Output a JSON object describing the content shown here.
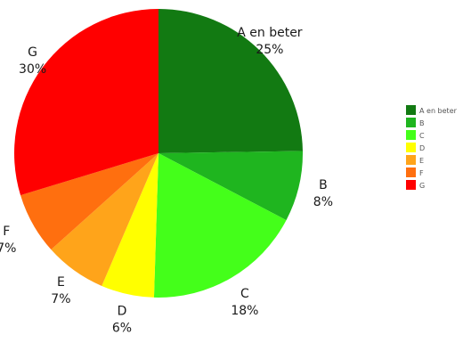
{
  "chart_data": {
    "type": "pie",
    "title": "",
    "categories": [
      "A en beter",
      "B",
      "C",
      "D",
      "E",
      "F",
      "G"
    ],
    "values": [
      25,
      8,
      18,
      6,
      7,
      7,
      30
    ],
    "labels": [
      "25%",
      "8%",
      "18%",
      "6%",
      "7%",
      "7%",
      "30%"
    ],
    "colors": [
      "#127a12",
      "#1fb51f",
      "#44ff1a",
      "#ffff00",
      "#ffa41a",
      "#ff6f0f",
      "#ff0000"
    ],
    "start_angle": "12 o'clock",
    "direction": "clockwise",
    "legend_position": "right",
    "show_slice_labels": true
  }
}
